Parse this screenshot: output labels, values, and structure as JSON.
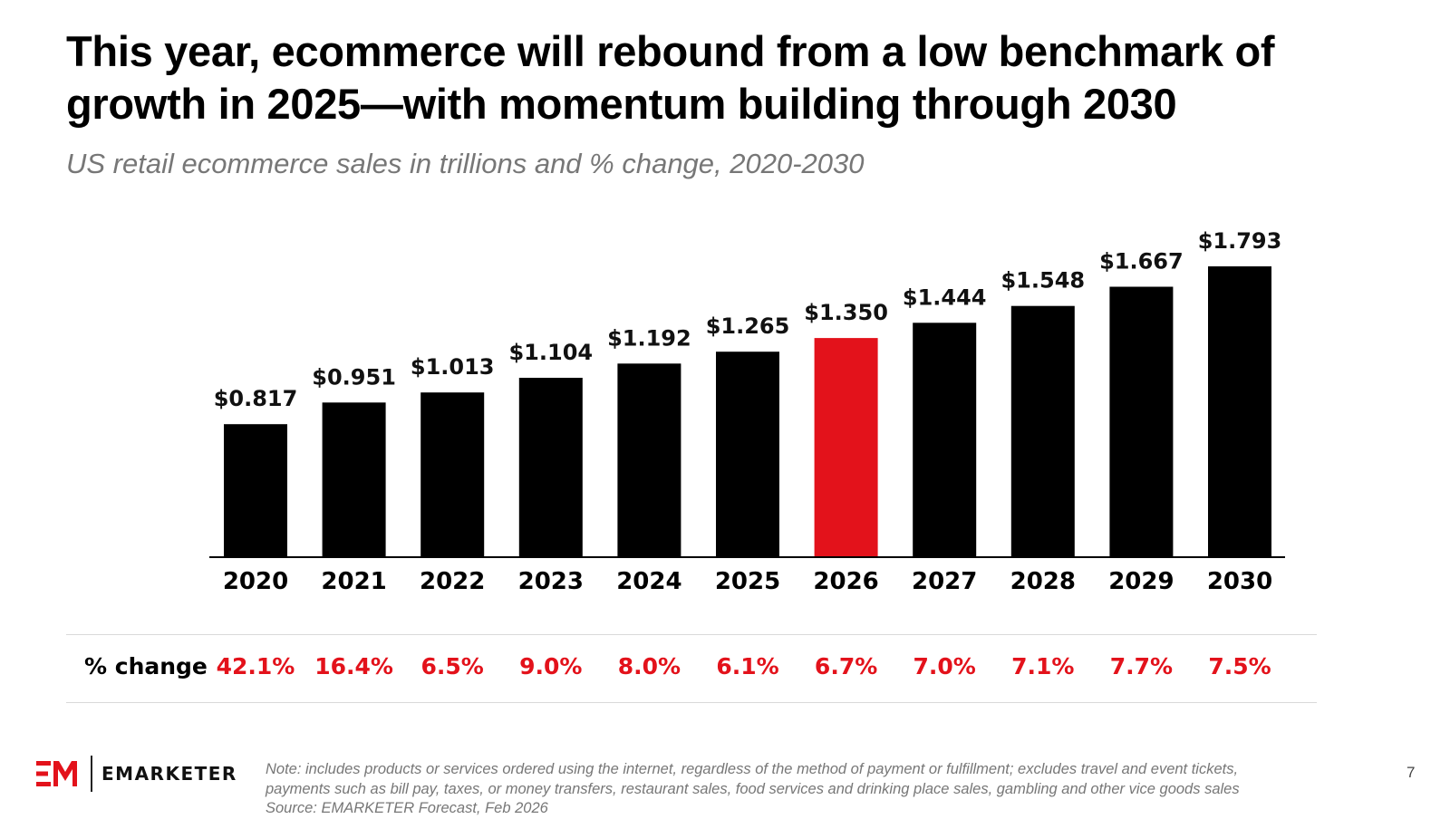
{
  "header": {
    "title_line1": "This year, ecommerce will rebound from a low benchmark of",
    "title_line2": "growth in 2025—with momentum building through 2030",
    "subtitle": "US retail ecommerce sales in trillions and % change, 2020-2030"
  },
  "colors": {
    "bar": "#000000",
    "highlight": "#e3121b",
    "pct_text": "#e3121b"
  },
  "chart_data": {
    "type": "bar",
    "title": "This year, ecommerce will rebound from a low benchmark of growth in 2025—with momentum building through 2030",
    "subtitle": "US retail ecommerce sales in trillions and % change, 2020-2030",
    "categories": [
      "2020",
      "2021",
      "2022",
      "2023",
      "2024",
      "2025",
      "2026",
      "2027",
      "2028",
      "2029",
      "2030"
    ],
    "values": [
      0.817,
      0.951,
      1.013,
      1.104,
      1.192,
      1.265,
      1.35,
      1.444,
      1.548,
      1.667,
      1.793
    ],
    "value_labels": [
      "$0.817",
      "$0.951",
      "$1.013",
      "$1.104",
      "$1.192",
      "$1.265",
      "$1.350",
      "$1.444",
      "$1.548",
      "$1.667",
      "$1.793"
    ],
    "highlight_category": "2026",
    "ylim": [
      0,
      1.793
    ],
    "grid": false
  },
  "pct_change": {
    "header": "% change",
    "values": [
      "42.1%",
      "16.4%",
      "6.5%",
      "9.0%",
      "8.0%",
      "6.1%",
      "6.7%",
      "7.0%",
      "7.1%",
      "7.7%",
      "7.5%"
    ]
  },
  "footer": {
    "brand": "EMARKETER",
    "note_line1": "Note: includes products or services ordered using the internet, regardless of the method of payment or fulfillment; excludes travel and event tickets,",
    "note_line2": "payments such as bill pay, taxes, or money transfers, restaurant sales, food services and drinking place sales, gambling and other vice goods sales",
    "source": "Source: EMARKETER Forecast, Feb 2026",
    "page_number": "7"
  }
}
